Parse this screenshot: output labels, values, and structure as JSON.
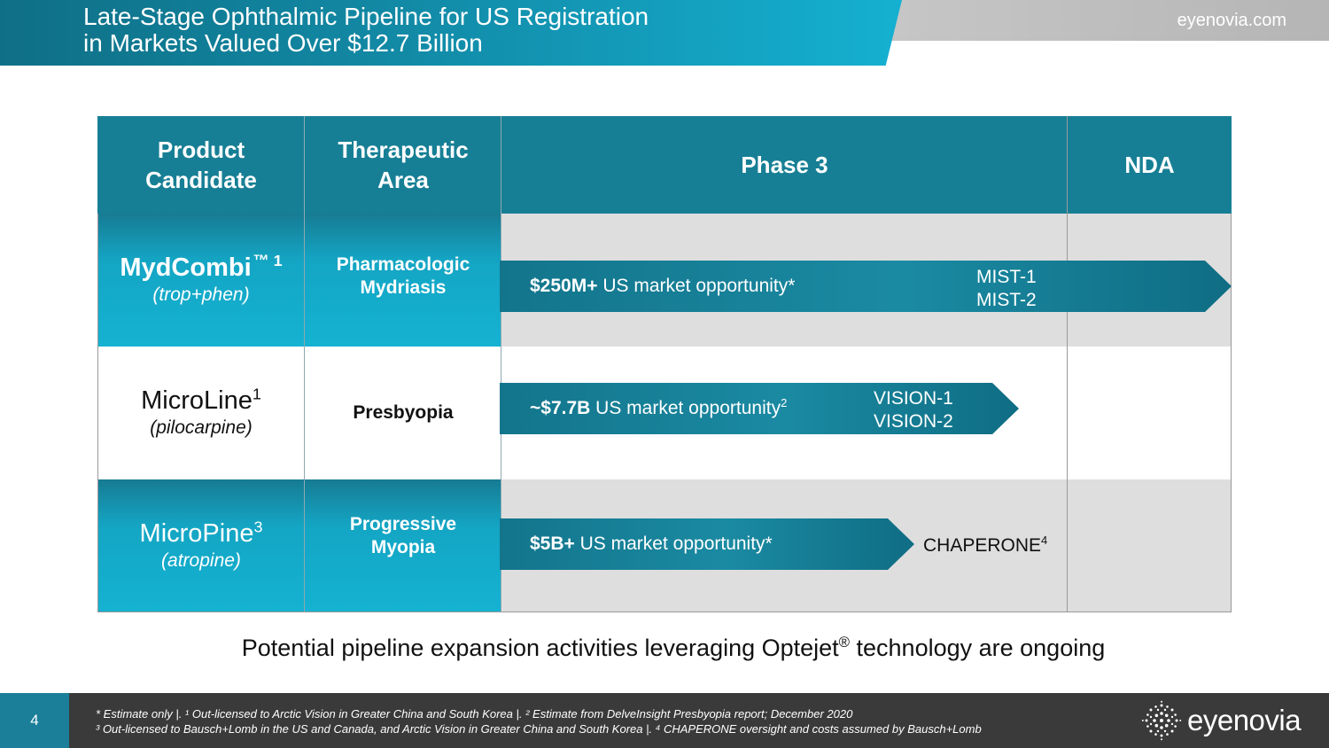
{
  "header": {
    "title_line1": "Late-Stage Ophthalmic Pipeline for US Registration",
    "title_line2": "in Markets Valued Over $12.7 Billion",
    "site": "eyenovia.com"
  },
  "table": {
    "headers": {
      "product": "Product Candidate",
      "area": "Therapeutic Area",
      "phase3": "Phase 3",
      "nda": "NDA"
    },
    "rows": [
      {
        "name": "MydCombi",
        "name_sup": "™ 1",
        "sub": "(trop+phen)",
        "area": "Pharmacologic Mydriasis",
        "market_bold": "$250M+",
        "market_text": " US market opportunity*",
        "market_sup": "",
        "trials": [
          "MIST-1",
          "MIST-2"
        ]
      },
      {
        "name": "MicroLine",
        "name_sup": "1",
        "sub": "(pilocarpine)",
        "area": "Presbyopia",
        "market_bold": "~$7.7B",
        "market_text": " US market opportunity",
        "market_sup": "2",
        "trials": [
          "VISION-1",
          "VISION-2"
        ]
      },
      {
        "name": "MicroPine",
        "name_sup": "3",
        "sub": "(atropine)",
        "area": "Progressive Myopia",
        "market_bold": "$5B+",
        "market_text": " US market opportunity*",
        "market_sup": "",
        "trials": [
          "CHAPERONE"
        ],
        "trial_sup": "4"
      }
    ]
  },
  "bottom_note": {
    "before": "Potential pipeline expansion activities leveraging Optejet",
    "sup": "®",
    "after": " technology are ongoing"
  },
  "footer": {
    "page_number": "4",
    "note_line1": "* Estimate only     |.   ¹ Out-licensed to Arctic Vision in Greater China and South Korea    |.   ² Estimate from DelveInsight Presbyopia report; December 2020",
    "note_line2": "³ Out-licensed to Bausch+Lomb in the US and Canada, and Arctic Vision in Greater China and South Korea     |.   ⁴ CHAPERONE oversight and costs assumed by Bausch+Lomb",
    "logo_text": "eyenovia"
  }
}
